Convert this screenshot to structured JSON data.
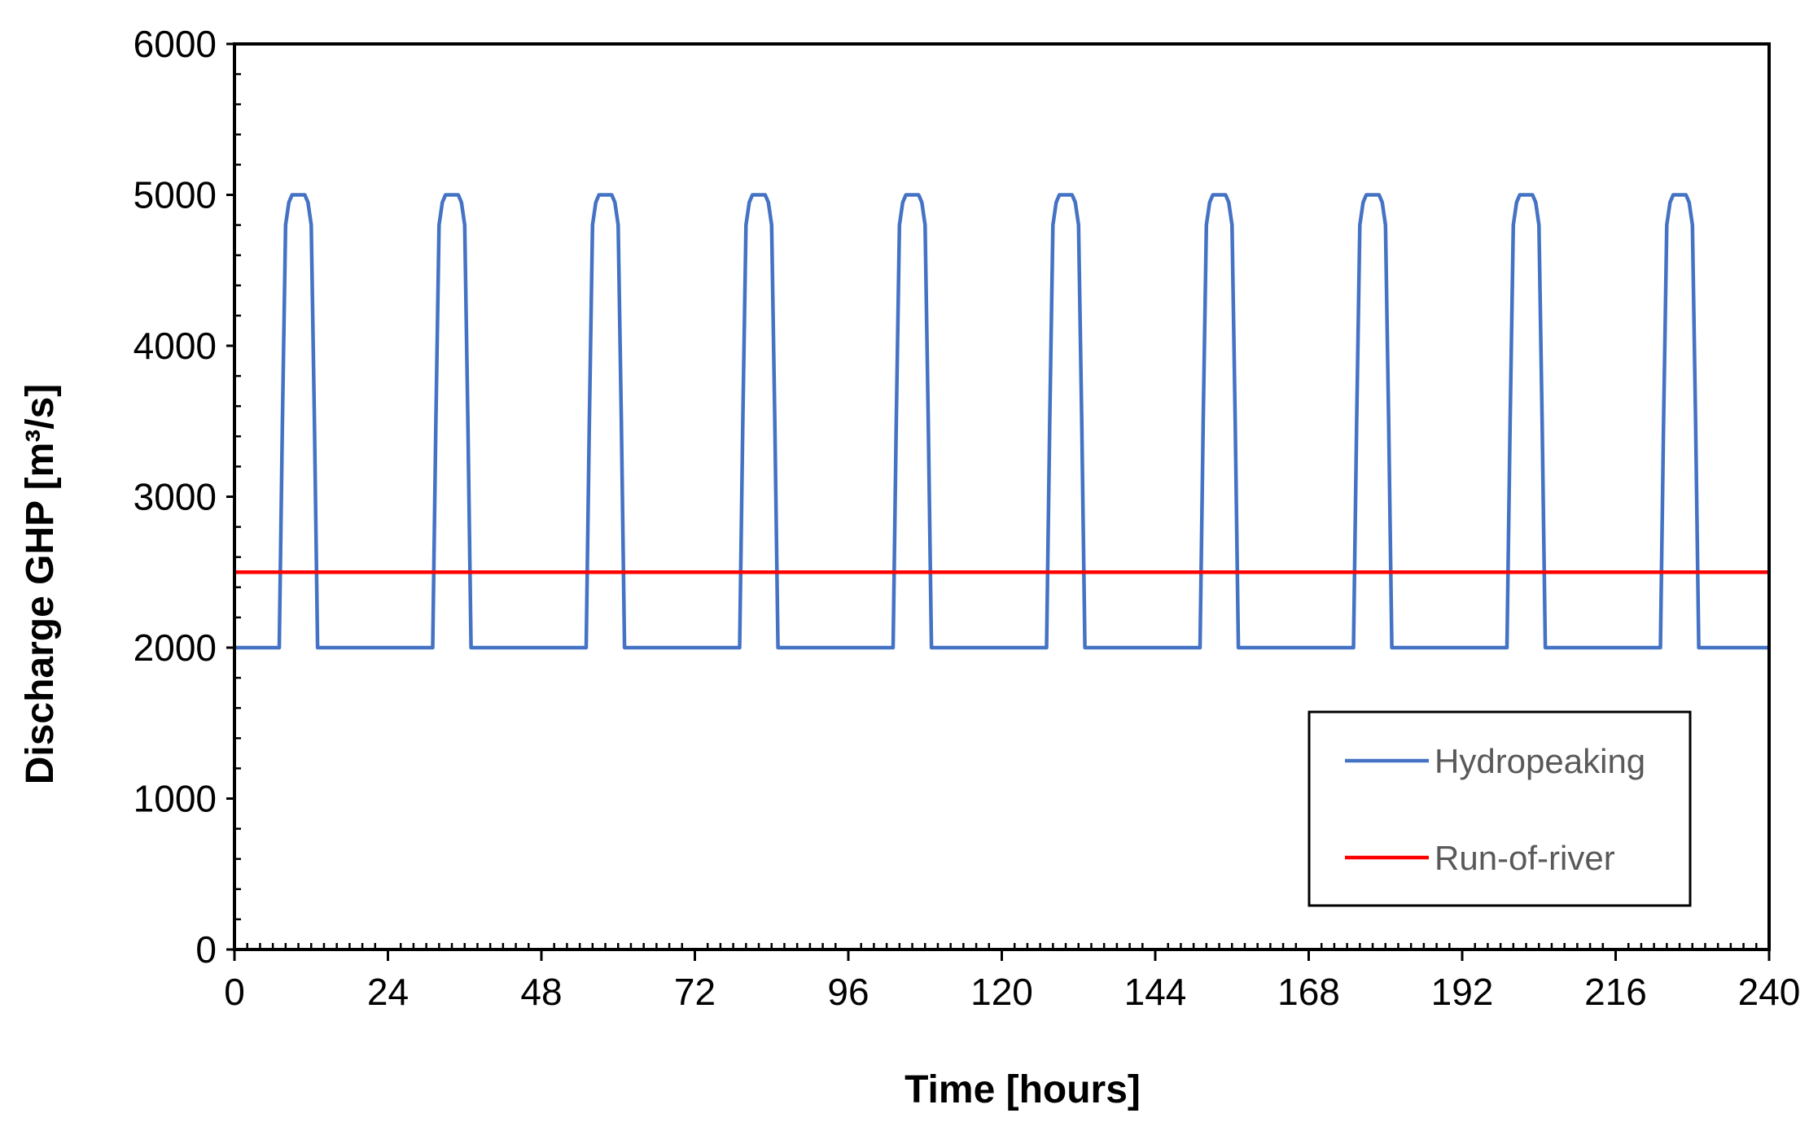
{
  "chart_data": {
    "type": "line",
    "xlabel": "Time [hours]",
    "ylabel": "Discharge GHP [m³/s]",
    "xlim": [
      0,
      240
    ],
    "ylim": [
      0,
      6000
    ],
    "x_ticks": [
      0,
      24,
      48,
      72,
      96,
      120,
      144,
      168,
      192,
      216,
      240
    ],
    "y_ticks": [
      0,
      1000,
      2000,
      3000,
      4000,
      5000,
      6000
    ],
    "grid": false,
    "legend_position": "bottom-right",
    "colors": {
      "Hydropeaking": "#4472C4",
      "Run-of-river": "#FF0000"
    },
    "series": [
      {
        "name": "Hydropeaking",
        "x": [
          0,
          7,
          7.5,
          8,
          8.5,
          9,
          11,
          11.5,
          12,
          12.5,
          13,
          24,
          31,
          31.5,
          32,
          32.5,
          33,
          35,
          35.5,
          36,
          36.5,
          37,
          48,
          55,
          55.5,
          56,
          56.5,
          57,
          59,
          59.5,
          60,
          60.5,
          61,
          72,
          79,
          79.5,
          80,
          80.5,
          81,
          83,
          83.5,
          84,
          84.5,
          85,
          96,
          103,
          103.5,
          104,
          104.5,
          105,
          107,
          107.5,
          108,
          108.5,
          109,
          120,
          127,
          127.5,
          128,
          128.5,
          129,
          131,
          131.5,
          132,
          132.5,
          133,
          144,
          151,
          151.5,
          152,
          152.5,
          153,
          155,
          155.5,
          156,
          156.5,
          157,
          168,
          175,
          175.5,
          176,
          176.5,
          177,
          179,
          179.5,
          180,
          180.5,
          181,
          192,
          199,
          199.5,
          200,
          200.5,
          201,
          203,
          203.5,
          204,
          204.5,
          205,
          216,
          223,
          223.5,
          224,
          224.5,
          225,
          227,
          227.5,
          228,
          228.5,
          229,
          240
        ],
        "y": [
          2000,
          2000,
          3500,
          4800,
          4950,
          5000,
          5000,
          4950,
          4800,
          3500,
          2000,
          2000,
          2000,
          3500,
          4800,
          4950,
          5000,
          5000,
          4950,
          4800,
          3500,
          2000,
          2000,
          2000,
          3500,
          4800,
          4950,
          5000,
          5000,
          4950,
          4800,
          3500,
          2000,
          2000,
          2000,
          3500,
          4800,
          4950,
          5000,
          5000,
          4950,
          4800,
          3500,
          2000,
          2000,
          2000,
          3500,
          4800,
          4950,
          5000,
          5000,
          4950,
          4800,
          3500,
          2000,
          2000,
          2000,
          3500,
          4800,
          4950,
          5000,
          5000,
          4950,
          4800,
          3500,
          2000,
          2000,
          2000,
          3500,
          4800,
          4950,
          5000,
          5000,
          4950,
          4800,
          3500,
          2000,
          2000,
          2000,
          3500,
          4800,
          4950,
          5000,
          5000,
          4950,
          4800,
          3500,
          2000,
          2000,
          2000,
          3500,
          4800,
          4950,
          5000,
          5000,
          4950,
          4800,
          3500,
          2000,
          2000,
          2000,
          3500,
          4800,
          4950,
          5000,
          5000,
          4950,
          4800,
          3500,
          2000,
          2000
        ]
      },
      {
        "name": "Run-of-river",
        "x": [
          0,
          240
        ],
        "y": [
          2500,
          2500
        ]
      }
    ]
  }
}
